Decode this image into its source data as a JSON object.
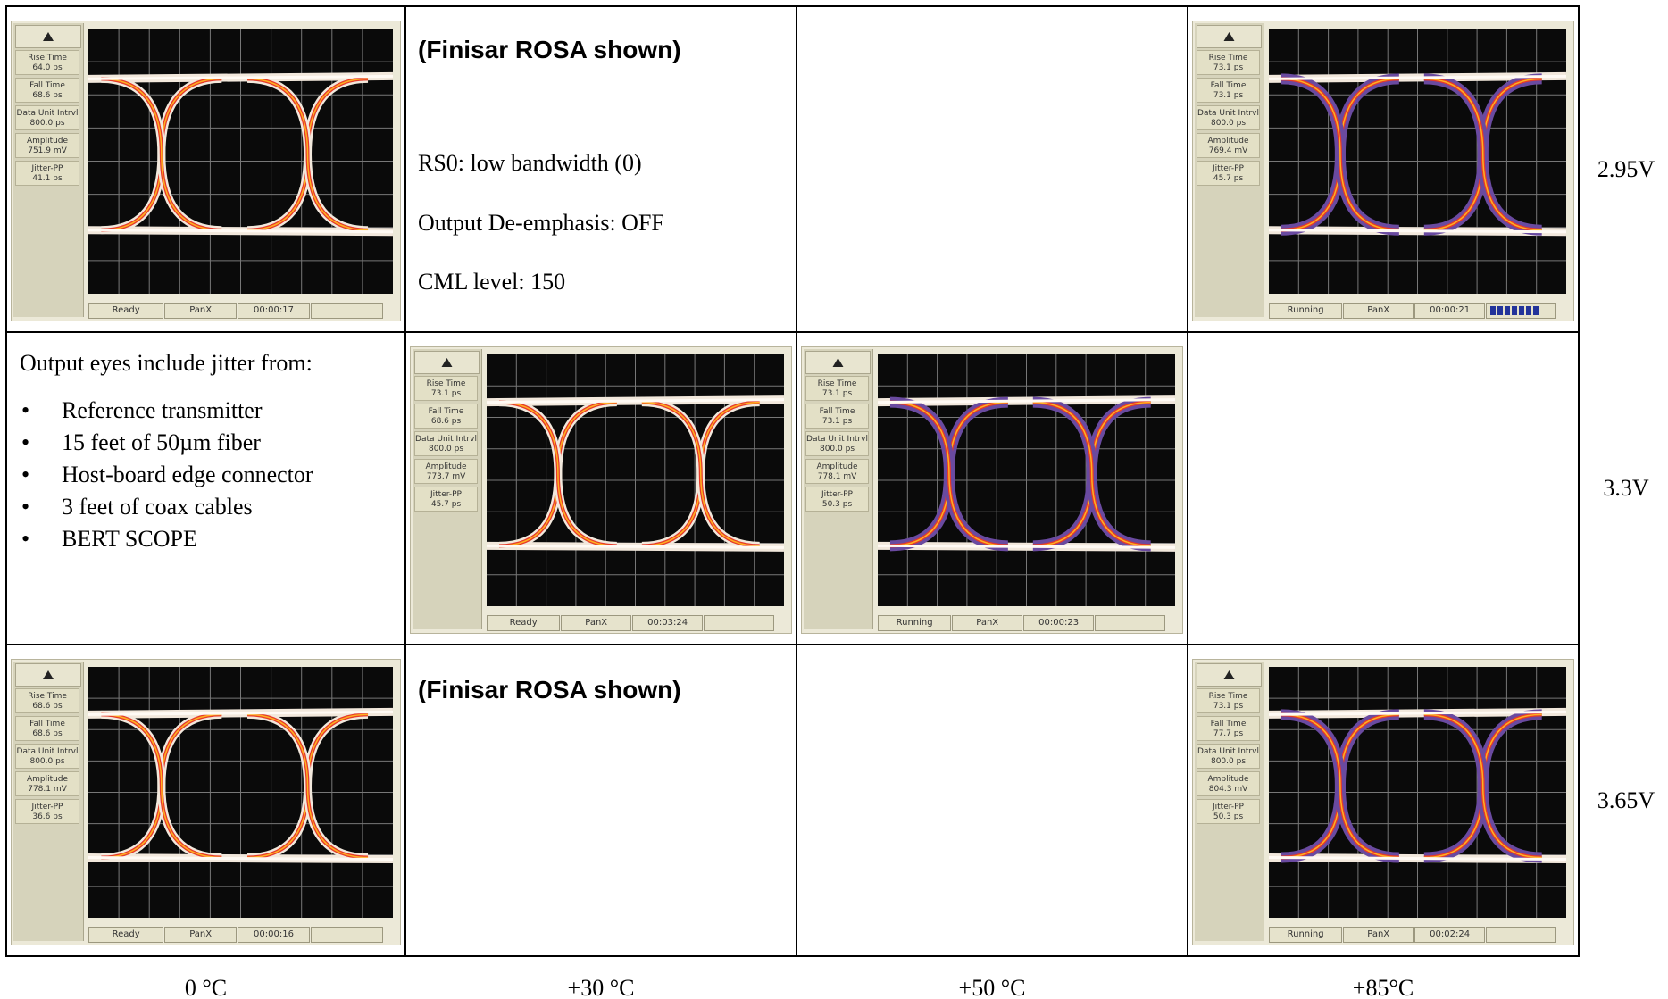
{
  "columns": [
    "0 °C",
    "+30 °C",
    "+50 °C",
    "+85°C"
  ],
  "rows": [
    "2.95V",
    "3.3V",
    "3.65V"
  ],
  "settings_note": {
    "title": "(Finisar ROSA shown)",
    "lines": [
      "RS0: low bandwidth (0)",
      "Output De-emphasis: OFF",
      "CML level: 150"
    ]
  },
  "jitter_note": {
    "intro": "Output eyes include jitter from:",
    "items": [
      "Reference transmitter",
      "15 feet of 50µm fiber",
      "Host-board edge connector",
      "3 feet of coax cables",
      "BERT SCOPE"
    ]
  },
  "second_note": {
    "title": "(Finisar ROSA shown)"
  },
  "scopes": [
    {
      "measurements": [
        {
          "label": "Rise Time",
          "value": "64.0 ps"
        },
        {
          "label": "Fall Time",
          "value": "68.6 ps"
        },
        {
          "label": "Data Unit Intrvl",
          "value": "800.0 ps"
        },
        {
          "label": "Amplitude",
          "value": "751.9 mV"
        },
        {
          "label": "Jitter-PP",
          "value": "41.1 ps"
        }
      ],
      "status": [
        "Ready",
        "PanX",
        "00:00:17"
      ]
    },
    {
      "measurements": [
        {
          "label": "Rise Time",
          "value": "73.1 ps"
        },
        {
          "label": "Fall Time",
          "value": "73.1 ps"
        },
        {
          "label": "Data Unit Intrvl",
          "value": "800.0 ps"
        },
        {
          "label": "Amplitude",
          "value": "769.4 mV"
        },
        {
          "label": "Jitter-PP",
          "value": "45.7 ps"
        }
      ],
      "status": [
        "Running",
        "PanX",
        "00:00:21"
      ]
    },
    {
      "measurements": [
        {
          "label": "Rise Time",
          "value": "73.1 ps"
        },
        {
          "label": "Fall Time",
          "value": "68.6 ps"
        },
        {
          "label": "Data Unit Intrvl",
          "value": "800.0 ps"
        },
        {
          "label": "Amplitude",
          "value": "773.7 mV"
        },
        {
          "label": "Jitter-PP",
          "value": "45.7 ps"
        }
      ],
      "status": [
        "Ready",
        "PanX",
        "00:03:24"
      ]
    },
    {
      "measurements": [
        {
          "label": "Rise Time",
          "value": "73.1 ps"
        },
        {
          "label": "Fall Time",
          "value": "73.1 ps"
        },
        {
          "label": "Data Unit Intrvl",
          "value": "800.0 ps"
        },
        {
          "label": "Amplitude",
          "value": "778.1 mV"
        },
        {
          "label": "Jitter-PP",
          "value": "50.3 ps"
        }
      ],
      "status": [
        "Running",
        "PanX",
        "00:00:23"
      ]
    },
    {
      "measurements": [
        {
          "label": "Rise Time",
          "value": "68.6 ps"
        },
        {
          "label": "Fall Time",
          "value": "68.6 ps"
        },
        {
          "label": "Data Unit Intrvl",
          "value": "800.0 ps"
        },
        {
          "label": "Amplitude",
          "value": "778.1 mV"
        },
        {
          "label": "Jitter-PP",
          "value": "36.6 ps"
        }
      ],
      "status": [
        "Ready",
        "PanX",
        "00:00:16"
      ]
    },
    {
      "measurements": [
        {
          "label": "Rise Time",
          "value": "73.1 ps"
        },
        {
          "label": "Fall Time",
          "value": "77.7 ps"
        },
        {
          "label": "Data Unit Intrvl",
          "value": "800.0 ps"
        },
        {
          "label": "Amplitude",
          "value": "804.3 mV"
        },
        {
          "label": "Jitter-PP",
          "value": "50.3 ps"
        }
      ],
      "status": [
        "Running",
        "PanX",
        "00:02:24"
      ]
    }
  ]
}
